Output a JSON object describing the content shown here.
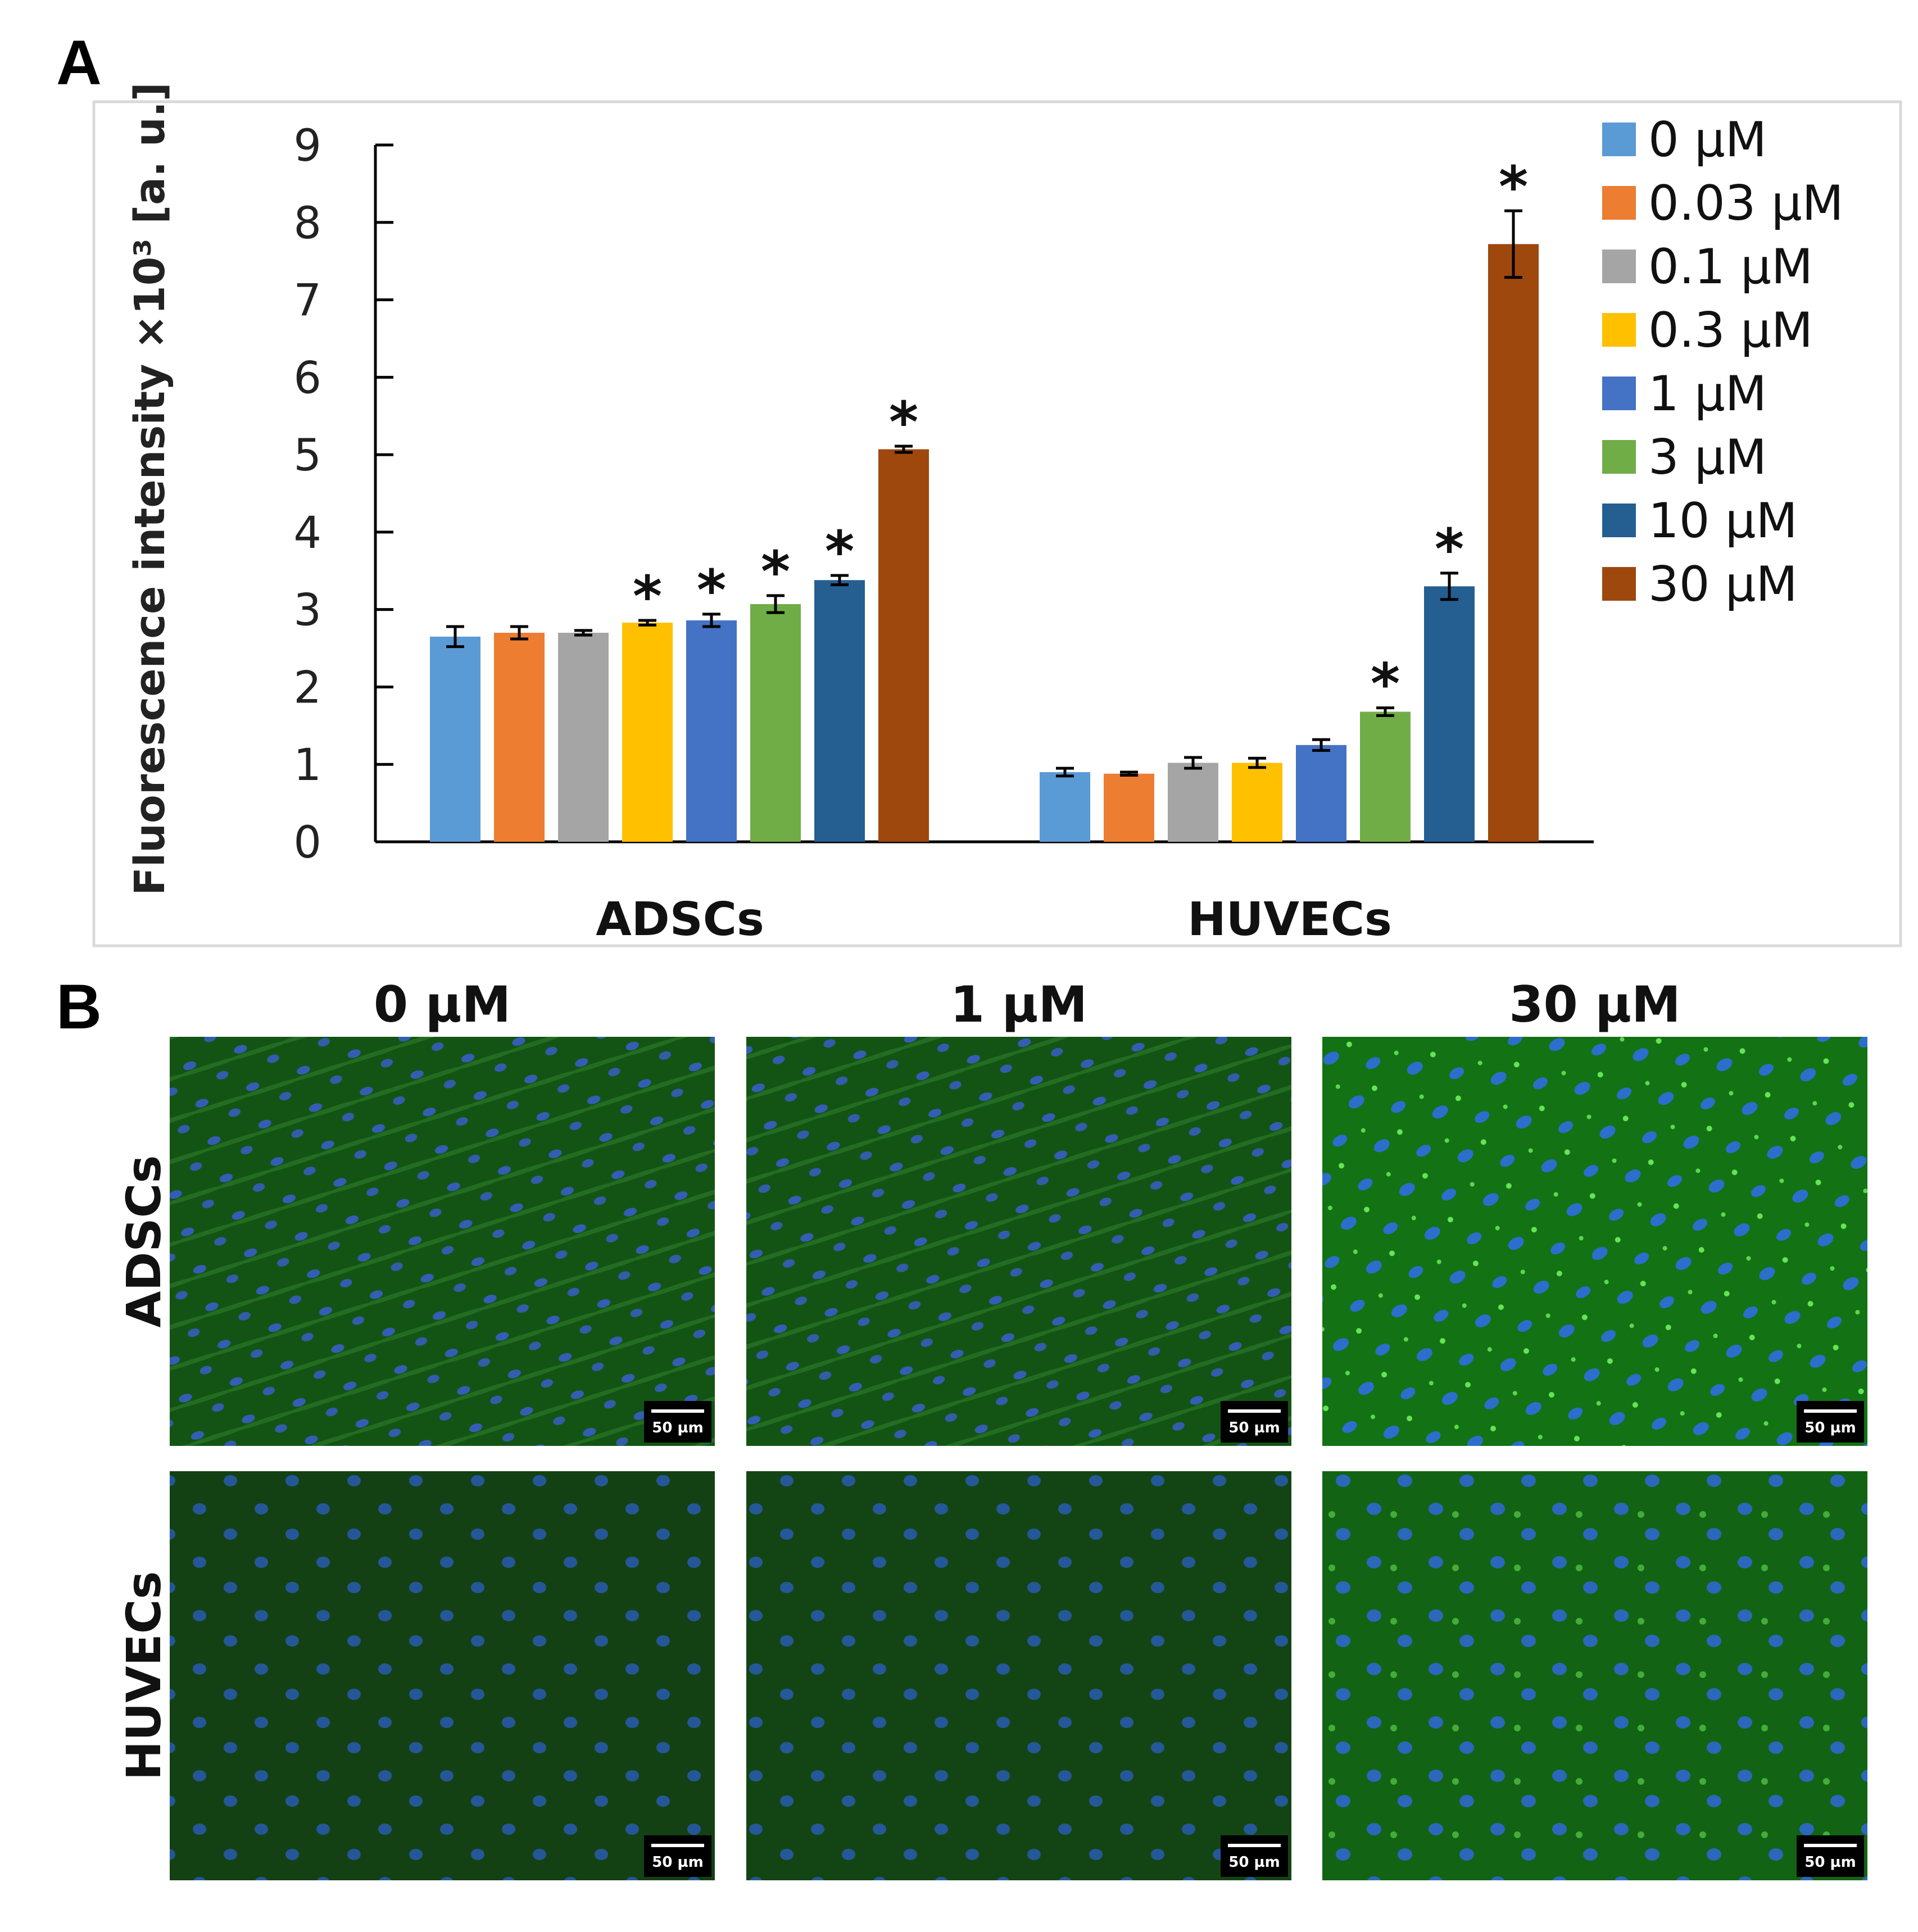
{
  "panels": {
    "a_label": "A",
    "b_label": "B"
  },
  "colors": {
    "0": "#5B9BD5",
    "0.03": "#ED7D31",
    "0.1": "#A5A5A5",
    "0.3": "#FFC000",
    "1": "#4472C4",
    "3": "#70AD47",
    "10": "#255E91",
    "30": "#9E480E"
  },
  "chart_data": {
    "type": "bar",
    "title": "",
    "xlabel": "",
    "ylabel": "Fluorescence intensity ×10³  [a. u.]",
    "ylim": [
      0,
      9
    ],
    "yticks": [
      0,
      1,
      2,
      3,
      4,
      5,
      6,
      7,
      8,
      9
    ],
    "categories": [
      "ADSCs",
      "HUVECs"
    ],
    "legend_position": "right",
    "series": [
      {
        "name": "0 µM",
        "color": "#5B9BD5",
        "values": [
          2.65,
          0.9
        ],
        "errors": [
          0.13,
          0.05
        ],
        "significant": [
          false,
          false
        ]
      },
      {
        "name": "0.03 µM",
        "color": "#ED7D31",
        "values": [
          2.7,
          0.88
        ],
        "errors": [
          0.08,
          0.02
        ],
        "significant": [
          false,
          false
        ]
      },
      {
        "name": "0.1 µM",
        "color": "#A5A5A5",
        "values": [
          2.7,
          1.02
        ],
        "errors": [
          0.03,
          0.07
        ],
        "significant": [
          false,
          false
        ]
      },
      {
        "name": "0.3 µM",
        "color": "#FFC000",
        "values": [
          2.83,
          1.02
        ],
        "errors": [
          0.03,
          0.06
        ],
        "significant": [
          true,
          false
        ]
      },
      {
        "name": "1 µM",
        "color": "#4472C4",
        "values": [
          2.86,
          1.25
        ],
        "errors": [
          0.08,
          0.07
        ],
        "significant": [
          true,
          false
        ]
      },
      {
        "name": "3 µM",
        "color": "#70AD47",
        "values": [
          3.07,
          1.68
        ],
        "errors": [
          0.11,
          0.05
        ],
        "significant": [
          true,
          true
        ]
      },
      {
        "name": "10 µM",
        "color": "#255E91",
        "values": [
          3.38,
          3.3
        ],
        "errors": [
          0.06,
          0.17
        ],
        "significant": [
          true,
          true
        ]
      },
      {
        "name": "30 µM",
        "color": "#9E480E",
        "values": [
          5.07,
          7.72
        ],
        "errors": [
          0.04,
          0.43
        ],
        "significant": [
          true,
          true
        ]
      }
    ],
    "significance_marker": "*"
  },
  "micrographs": {
    "columns": [
      "0 µM",
      "1 µM",
      "30 µM"
    ],
    "rows": [
      "ADSCs",
      "HUVECs"
    ],
    "scale_bar": "50 µm",
    "staining": [
      [
        0.55,
        0.55,
        0.85
      ],
      [
        0.35,
        0.4,
        0.7
      ]
    ]
  }
}
